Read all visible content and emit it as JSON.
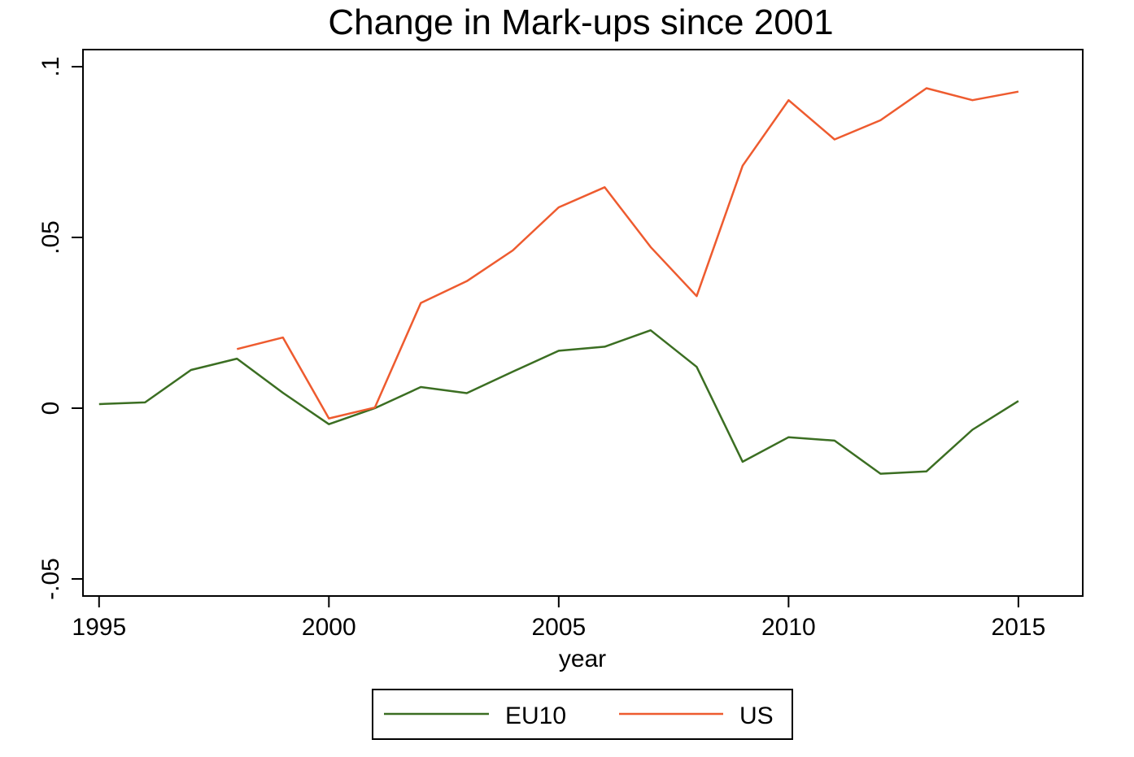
{
  "chart_data": {
    "type": "line",
    "title": "Change in Mark-ups since 2001",
    "xlabel": "year",
    "ylabel": "",
    "xlim": [
      1994.65,
      2016.4
    ],
    "ylim": [
      -0.055,
      0.105
    ],
    "xticks": [
      1995,
      2000,
      2005,
      2010,
      2015
    ],
    "xtick_labels": [
      "1995",
      "2000",
      "2005",
      "2010",
      "2015"
    ],
    "yticks": [
      -0.05,
      0,
      0.05,
      0.1
    ],
    "ytick_labels": [
      "-.05",
      "0",
      ".05",
      ".1"
    ],
    "grid": false,
    "legend_position": "bottom",
    "series": [
      {
        "name": "EU10",
        "color": "#3b6e22",
        "x": [
          1995,
          1996,
          1997,
          1998,
          1999,
          2000,
          2001,
          2002,
          2003,
          2004,
          2005,
          2006,
          2007,
          2008,
          2009,
          2010,
          2011,
          2012,
          2013,
          2014,
          2015
        ],
        "y": [
          0.0012,
          0.0017,
          0.0112,
          0.0145,
          0.0045,
          -0.0047,
          0.0,
          0.0062,
          0.0044,
          0.0107,
          0.0168,
          0.018,
          0.0228,
          0.0121,
          -0.0157,
          -0.0085,
          -0.0095,
          -0.0192,
          -0.0185,
          -0.0063,
          0.0021
        ]
      },
      {
        "name": "US",
        "color": "#ee5b2f",
        "x": [
          1998,
          1999,
          2000,
          2001,
          2002,
          2003,
          2004,
          2005,
          2006,
          2007,
          2008,
          2009,
          2010,
          2011,
          2012,
          2013,
          2014,
          2015
        ],
        "y": [
          0.0173,
          0.0207,
          -0.003,
          0.0002,
          0.0308,
          0.0372,
          0.0462,
          0.0588,
          0.0647,
          0.0472,
          0.0328,
          0.071,
          0.0902,
          0.0787,
          0.0843,
          0.0937,
          0.0902,
          0.0927
        ]
      }
    ]
  }
}
